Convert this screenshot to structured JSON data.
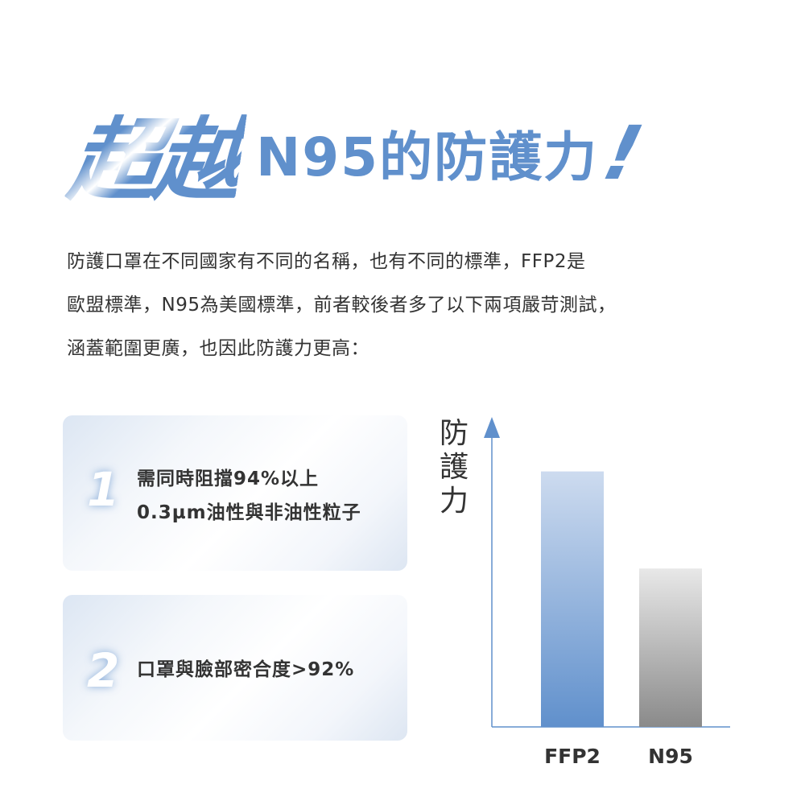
{
  "headline": {
    "emphasis": "超越",
    "rest": "N95的防護力",
    "exclaim": "!"
  },
  "paragraph": {
    "lines": [
      "防護口罩在不同國家有不同的名稱，也有不同的標準，FFP2是",
      "歐盟標準，N95為美國標準，前者較後者多了以下兩項嚴苛測試，",
      "涵蓋範圍更廣，也因此防護力更高："
    ]
  },
  "cards": [
    {
      "number": "1",
      "lines": [
        "需同時阻擋94%以上",
        "0.3µm油性與非油性粒子"
      ]
    },
    {
      "number": "2",
      "lines": [
        "口罩與臉部密合度>92%"
      ]
    }
  ],
  "colors": {
    "accent": "#6090cc",
    "n95_top": "#e8e8e8",
    "n95_bottom": "#8a8a8a",
    "ffp2_top": "#cddbef",
    "ffp2_bottom": "#6090cc"
  },
  "chart_data": {
    "type": "bar",
    "ylabel": "防護力",
    "xlabel": "",
    "categories": [
      "FFP2",
      "N95"
    ],
    "values": [
      100,
      62
    ],
    "ylim": [
      0,
      115
    ],
    "grid": false,
    "legend": "none"
  }
}
